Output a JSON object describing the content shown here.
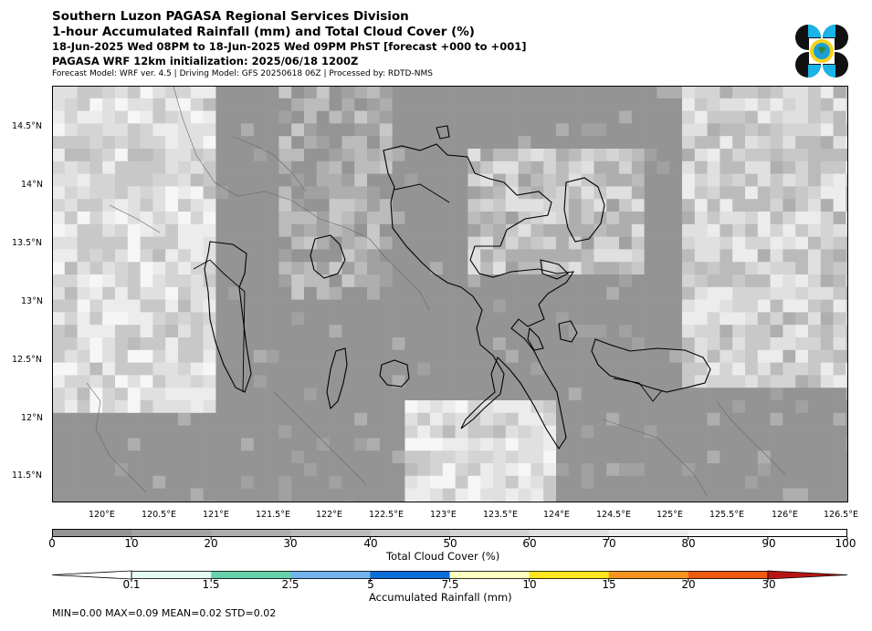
{
  "header": {
    "title1": "Southern Luzon PAGASA Regional Services Division",
    "title2": "1-hour Accumulated Rainfall (mm) and Total Cloud Cover (%)",
    "period": "18-Jun-2025 Wed 08PM to 18-Jun-2025 Wed 09PM PhST [forecast +000 to +001]",
    "init": "PAGASA WRF 12km initialization: 2025/06/18 1200Z",
    "model": "Forecast Model: WRF ver. 4.5 | Driving Model: GFS 20250618 06Z | Processed by: RDTD-NMS"
  },
  "logo": {
    "icon": "pagasa-logo-icon"
  },
  "map": {
    "lon_ticks": [
      "120°E",
      "120.5°E",
      "121°E",
      "121.5°E",
      "122°E",
      "122.5°E",
      "123°E",
      "123.5°E",
      "124°E",
      "124.5°E",
      "125°E",
      "125.5°E",
      "126°E",
      "126.5°E"
    ],
    "lat_ticks": [
      "14.5°N",
      "14°N",
      "13.5°N",
      "13°N",
      "12.5°N",
      "12°N",
      "11.5°N"
    ],
    "lon_range": [
      119.6,
      126.6
    ],
    "lat_range": [
      11.3,
      14.85
    ]
  },
  "cloud_colorbar": {
    "title": "Total Cloud Cover (%)",
    "ticks": [
      "0",
      "10",
      "20",
      "30",
      "40",
      "50",
      "60",
      "70",
      "80",
      "90",
      "100"
    ],
    "colors": [
      "#949494",
      "#a1a1a1",
      "#aeaeae",
      "#bbbbbb",
      "#c8c8c8",
      "#d4d4d4",
      "#e0e0e0",
      "#ececec",
      "#f6f6f6",
      "#ffffff"
    ]
  },
  "rain_colorbar": {
    "title": "Accumulated Rainfall (mm)",
    "ticks": [
      "0.1",
      "1.5",
      "2.5",
      "5",
      "7.5",
      "10",
      "15",
      "20",
      "30"
    ],
    "colors": [
      "#e6fbf2",
      "#68d1aa",
      "#73b4ec",
      "#0a6ed8",
      "#ffffc0",
      "#fde61d",
      "#f5951f",
      "#ee5a10",
      "#b81414"
    ]
  },
  "stats": "MIN=0.00   MAX=0.09   MEAN=0.02   STD=0.02"
}
